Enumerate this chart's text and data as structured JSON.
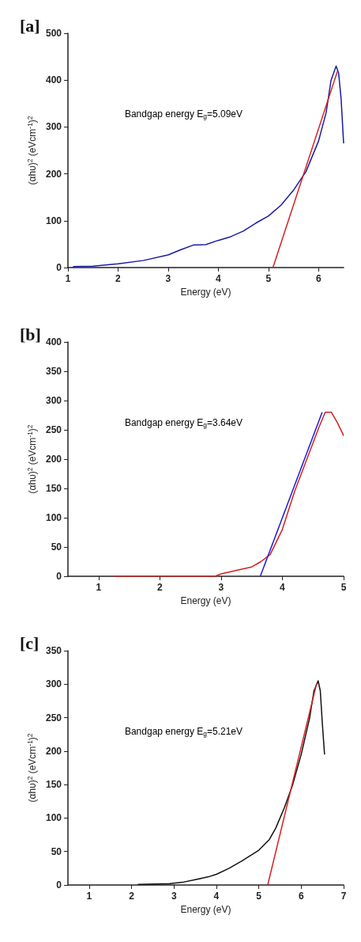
{
  "chart_data": [
    {
      "type": "line",
      "title": "[a]",
      "xlabel": "Energy (eV)",
      "ylabel": "(αhυ)$^{2}$ (eVcm$^{-1}$)$^{2}$",
      "annotations": [
        "Bandgap energy E$_{g}$=5.09eV"
      ],
      "xlim": [
        1,
        6.5
      ],
      "xticks": [
        1,
        2,
        3,
        4,
        5,
        6
      ],
      "ylim": [
        0,
        500
      ],
      "yticks": [
        0,
        100,
        200,
        300,
        400,
        500
      ],
      "marker": "none",
      "grid": false,
      "series": [
        {
          "color": "#1a1aa6",
          "x": [
            1.1,
            1.5,
            2,
            2.5,
            3,
            3.25,
            3.5,
            3.75,
            4,
            4.25,
            4.5,
            4.75,
            5,
            5.25,
            5.5,
            5.75,
            6,
            6.15,
            6.25,
            6.35,
            6.4,
            6.45,
            6.5
          ],
          "values": [
            2,
            3,
            8,
            15,
            27,
            38,
            48,
            49,
            58,
            66,
            78,
            95,
            110,
            133,
            165,
            205,
            270,
            330,
            400,
            430,
            415,
            360,
            265
          ]
        },
        {
          "color": "#d42020",
          "x": [
            5.09,
            6.38
          ],
          "values": [
            0,
            420
          ]
        }
      ]
    },
    {
      "type": "line",
      "title": "[b]",
      "xlabel": "Energy (eV)",
      "ylabel": "(αhυ)$^{2}$ (eVcm$^{-1}$)$^{2}$",
      "annotations": [
        "Bandgap energy E$_{g}$=3.64eV"
      ],
      "xlim": [
        0.5,
        5
      ],
      "xticks": [
        1,
        2,
        3,
        4,
        5
      ],
      "ylim": [
        0,
        400
      ],
      "yticks": [
        0,
        50,
        100,
        150,
        200,
        250,
        300,
        350,
        400
      ],
      "marker": "none",
      "grid": false,
      "series": [
        {
          "color": "#d42020",
          "x": [
            1.25,
            2.9,
            3.0,
            3.25,
            3.5,
            3.65,
            3.8,
            4,
            4.2,
            4.4,
            4.6,
            4.7,
            4.8,
            4.9,
            5
          ],
          "values": [
            0,
            0,
            4,
            10,
            16,
            25,
            37,
            80,
            145,
            200,
            255,
            280,
            280,
            262,
            240
          ]
        },
        {
          "color": "#1a1ae0",
          "x": [
            3.64,
            4.65
          ],
          "values": [
            0,
            280
          ]
        }
      ]
    },
    {
      "type": "line",
      "title": "[c]",
      "xlabel": "Energy (eV)",
      "ylabel": "(αhυ)$^{2}$ (eVcm$^{-1}$)$^{2}$",
      "annotations": [
        "Bandgap energy E$_{g}$=5.21eV"
      ],
      "xlim": [
        0.5,
        7
      ],
      "xticks": [
        1,
        2,
        3,
        4,
        5,
        6,
        7
      ],
      "ylim": [
        0,
        350
      ],
      "yticks": [
        0,
        50,
        100,
        150,
        200,
        250,
        300,
        350
      ],
      "marker": "none",
      "grid": false,
      "series": [
        {
          "color": "#111111",
          "x": [
            2.15,
            2.9,
            3.2,
            3.5,
            3.8,
            4,
            4.3,
            4.6,
            5,
            5.25,
            5.4,
            5.6,
            5.8,
            6,
            6.2,
            6.3,
            6.4,
            6.45,
            6.5,
            6.55
          ],
          "values": [
            1,
            2,
            4,
            8,
            12,
            16,
            25,
            36,
            52,
            68,
            85,
            115,
            150,
            195,
            250,
            290,
            305,
            290,
            240,
            195
          ]
        },
        {
          "color": "#d42020",
          "x": [
            5.21,
            6.36
          ],
          "values": [
            0,
            300
          ]
        }
      ]
    }
  ]
}
